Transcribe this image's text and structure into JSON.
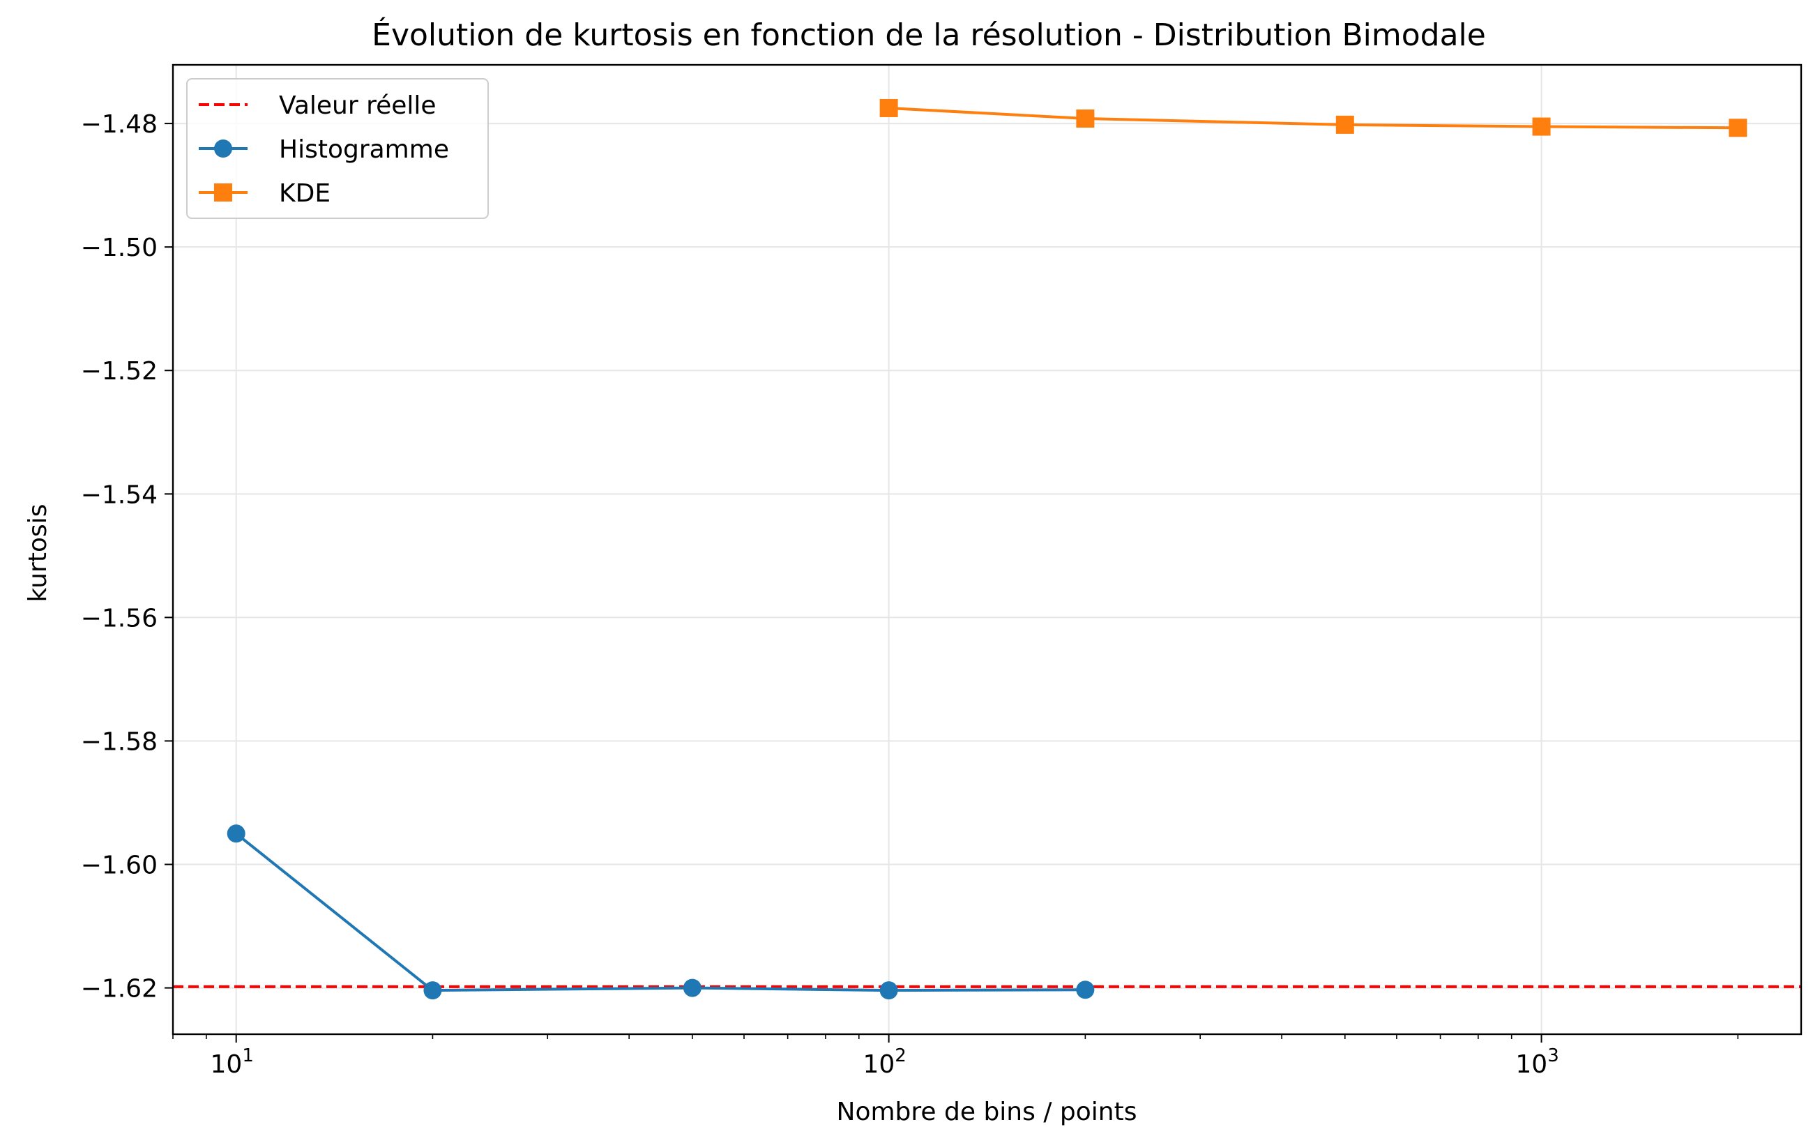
{
  "chart_data": {
    "type": "line",
    "title": "Évolution de kurtosis en fonction de la résolution - Distribution Bimodale",
    "xlabel": "Nombre de bins / points",
    "ylabel": "kurtosis",
    "xscale": "log",
    "xlim": [
      8,
      2500
    ],
    "ylim": [
      -1.6275,
      -1.4705
    ],
    "xticks": [
      {
        "value": 10,
        "base": "10",
        "exp": "1"
      },
      {
        "value": 100,
        "base": "10",
        "exp": "2"
      },
      {
        "value": 1000,
        "base": "10",
        "exp": "3"
      }
    ],
    "yticks": [
      {
        "value": -1.48,
        "label": "−1.48"
      },
      {
        "value": -1.5,
        "label": "−1.50"
      },
      {
        "value": -1.52,
        "label": "−1.52"
      },
      {
        "value": -1.54,
        "label": "−1.54"
      },
      {
        "value": -1.56,
        "label": "−1.56"
      },
      {
        "value": -1.58,
        "label": "−1.58"
      },
      {
        "value": -1.6,
        "label": "−1.60"
      },
      {
        "value": -1.62,
        "label": "−1.62"
      }
    ],
    "grid": true,
    "legend_position": "top-left",
    "reference_line": {
      "name": "Valeur réelle",
      "y": -1.6198,
      "color": "#ff0000",
      "style": "dashed"
    },
    "series": [
      {
        "name": "Histogramme",
        "color": "#1f77b4",
        "marker": "circle",
        "x": [
          10,
          20,
          50,
          100,
          200
        ],
        "y": [
          -1.595,
          -1.6204,
          -1.62,
          -1.6204,
          -1.6203
        ]
      },
      {
        "name": "KDE",
        "color": "#ff7f0e",
        "marker": "square",
        "x": [
          100,
          200,
          500,
          1000,
          2000
        ],
        "y": [
          -1.4775,
          -1.4792,
          -1.4802,
          -1.4805,
          -1.4807
        ]
      }
    ]
  }
}
